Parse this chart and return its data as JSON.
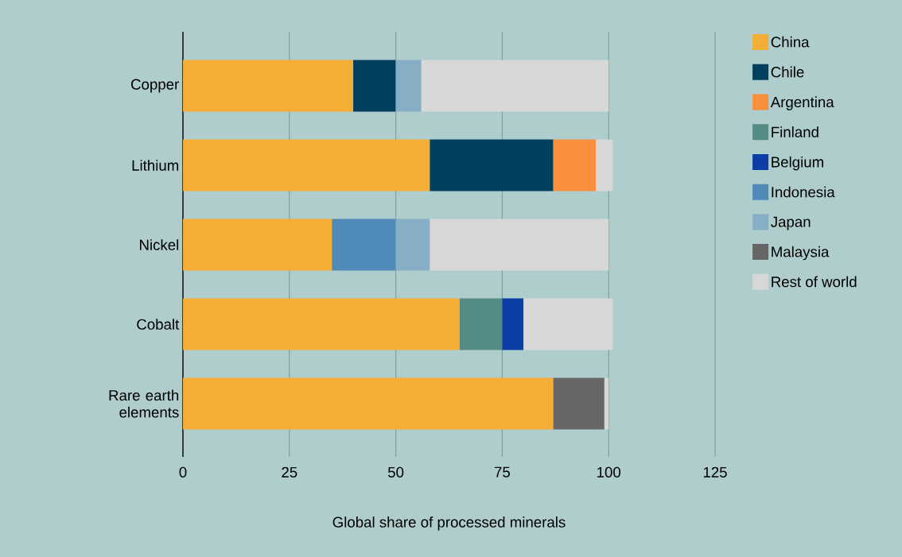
{
  "chart_data": {
    "type": "bar",
    "orientation": "horizontal",
    "stacked": true,
    "xlabel": "Global share of processed minerals",
    "categories": [
      "Copper",
      "Lithium",
      "Nickel",
      "Cobalt",
      "Rare earth elements"
    ],
    "series": [
      {
        "name": "China",
        "color": "#f4ae36",
        "values": [
          40,
          58,
          35,
          65,
          87
        ]
      },
      {
        "name": "Chile",
        "color": "#003f5e",
        "values": [
          10,
          29,
          null,
          null,
          null
        ]
      },
      {
        "name": "Argentina",
        "color": "#f98e3d",
        "values": [
          null,
          10,
          null,
          null,
          null
        ]
      },
      {
        "name": "Finland",
        "color": "#548b85",
        "values": [
          null,
          null,
          null,
          10,
          null
        ]
      },
      {
        "name": "Belgium",
        "color": "#0d3ea6",
        "values": [
          null,
          null,
          null,
          5,
          null
        ]
      },
      {
        "name": "Indonesia",
        "color": "#4f8ab8",
        "values": [
          null,
          null,
          15,
          null,
          null
        ]
      },
      {
        "name": "Japan",
        "color": "#86aec4",
        "values": [
          6,
          null,
          8,
          null,
          null
        ]
      },
      {
        "name": "Malaysia",
        "color": "#666666",
        "values": [
          null,
          null,
          null,
          null,
          12
        ]
      },
      {
        "name": "Rest of world",
        "color": "#d7d7d7",
        "values": [
          44,
          4,
          42,
          21,
          1
        ]
      }
    ],
    "xlim": [
      0,
      125
    ],
    "xticks": [
      0,
      25,
      50,
      75,
      100,
      125
    ],
    "grid": "x",
    "legend": "right"
  }
}
